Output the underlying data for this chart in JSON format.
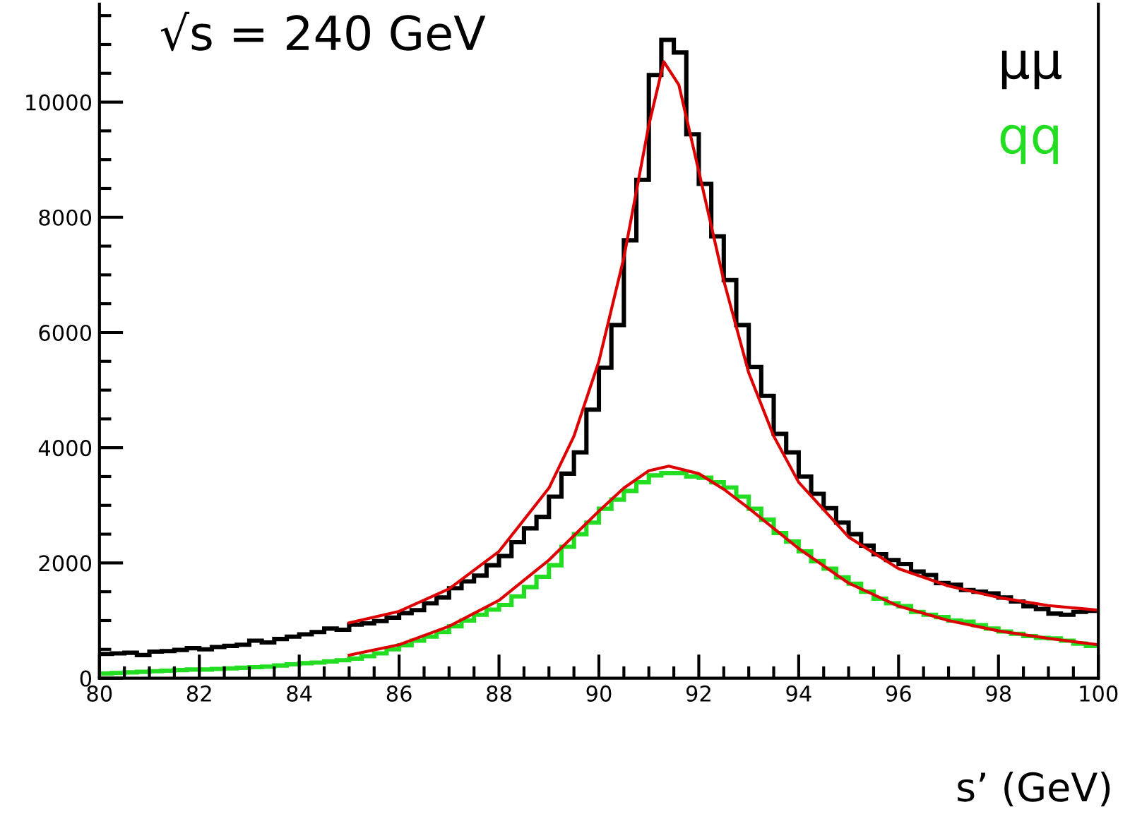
{
  "chart_data": {
    "type": "histogram",
    "xlabel": "s’ (GeV)",
    "annotations": [
      "√s = 240 GeV"
    ],
    "bins": [
      80,
      80.25,
      80.5,
      80.75,
      81,
      81.25,
      81.5,
      81.75,
      82,
      82.25,
      82.5,
      82.75,
      83,
      83.25,
      83.5,
      83.75,
      84,
      84.25,
      84.5,
      84.75,
      85,
      85.25,
      85.5,
      85.75,
      86,
      86.25,
      86.5,
      86.75,
      87,
      87.25,
      87.5,
      87.75,
      88,
      88.25,
      88.5,
      88.75,
      89,
      89.25,
      89.5,
      89.75,
      90,
      90.25,
      90.5,
      90.75,
      91,
      91.25,
      91.5,
      91.75,
      92,
      92.25,
      92.5,
      92.75,
      93,
      93.25,
      93.5,
      93.75,
      94,
      94.25,
      94.5,
      94.75,
      95,
      95.25,
      95.5,
      95.75,
      96,
      96.25,
      96.5,
      96.75,
      97,
      97.25,
      97.5,
      97.75,
      98,
      98.25,
      98.5,
      98.75,
      99,
      99.25,
      99.5,
      99.75,
      100
    ],
    "series": [
      {
        "name": "μμ",
        "color": "#000000",
        "values": [
          420,
          430,
          440,
          400,
          460,
          470,
          490,
          520,
          500,
          540,
          560,
          580,
          650,
          620,
          680,
          720,
          760,
          800,
          860,
          840,
          930,
          950,
          990,
          1050,
          1130,
          1180,
          1300,
          1400,
          1560,
          1680,
          1780,
          1960,
          2120,
          2360,
          2600,
          2800,
          3150,
          3550,
          3920,
          4660,
          5390,
          6130,
          7600,
          8650,
          10470,
          11080,
          10860,
          9440,
          8580,
          7670,
          6910,
          6130,
          5400,
          4900,
          4240,
          3920,
          3500,
          3200,
          2950,
          2700,
          2500,
          2300,
          2150,
          2050,
          1980,
          1850,
          1790,
          1650,
          1620,
          1530,
          1500,
          1470,
          1400,
          1330,
          1250,
          1200,
          1120,
          1100,
          1150,
          1170
        ]
      },
      {
        "name": "qq",
        "color": "#22dd22",
        "values": [
          80,
          90,
          100,
          110,
          120,
          130,
          140,
          150,
          150,
          160,
          170,
          180,
          190,
          200,
          220,
          240,
          260,
          270,
          290,
          310,
          340,
          380,
          430,
          500,
          570,
          650,
          720,
          800,
          900,
          1000,
          1100,
          1190,
          1270,
          1420,
          1580,
          1760,
          1960,
          2280,
          2500,
          2700,
          2940,
          3100,
          3250,
          3400,
          3520,
          3560,
          3560,
          3500,
          3480,
          3400,
          3310,
          3150,
          2940,
          2750,
          2520,
          2370,
          2200,
          2030,
          1900,
          1750,
          1640,
          1500,
          1380,
          1300,
          1250,
          1150,
          1100,
          1060,
          1000,
          980,
          920,
          860,
          810,
          770,
          730,
          700,
          690,
          650,
          600,
          560
        ]
      },
      {
        "type": "line",
        "color": "#dd0000",
        "x": [
          85,
          86,
          87,
          88,
          89,
          89.5,
          90,
          90.5,
          91,
          91.3,
          91.6,
          92,
          92.5,
          93,
          93.5,
          94,
          95,
          96,
          97,
          98,
          99,
          100
        ],
        "values": [
          960,
          1160,
          1550,
          2200,
          3300,
          4200,
          5500,
          7300,
          9600,
          10700,
          10300,
          8800,
          6900,
          5300,
          4200,
          3400,
          2450,
          1900,
          1600,
          1400,
          1260,
          1180
        ]
      },
      {
        "type": "line",
        "color": "#dd0000",
        "x": [
          85,
          86,
          87,
          88,
          89,
          90,
          90.5,
          91,
          91.4,
          92,
          92.5,
          93,
          94,
          95,
          96,
          97,
          98,
          99,
          100
        ],
        "values": [
          400,
          580,
          900,
          1350,
          2050,
          2900,
          3300,
          3600,
          3680,
          3550,
          3280,
          2950,
          2250,
          1650,
          1250,
          1000,
          820,
          690,
          580
        ]
      }
    ],
    "xlim": [
      80,
      100
    ],
    "ylim": [
      0,
      11700
    ],
    "xticks": [
      80,
      82,
      84,
      86,
      88,
      90,
      92,
      94,
      96,
      98,
      100
    ],
    "yticks": [
      0,
      2000,
      4000,
      6000,
      8000,
      10000
    ],
    "grid": false,
    "legend": "top right"
  }
}
